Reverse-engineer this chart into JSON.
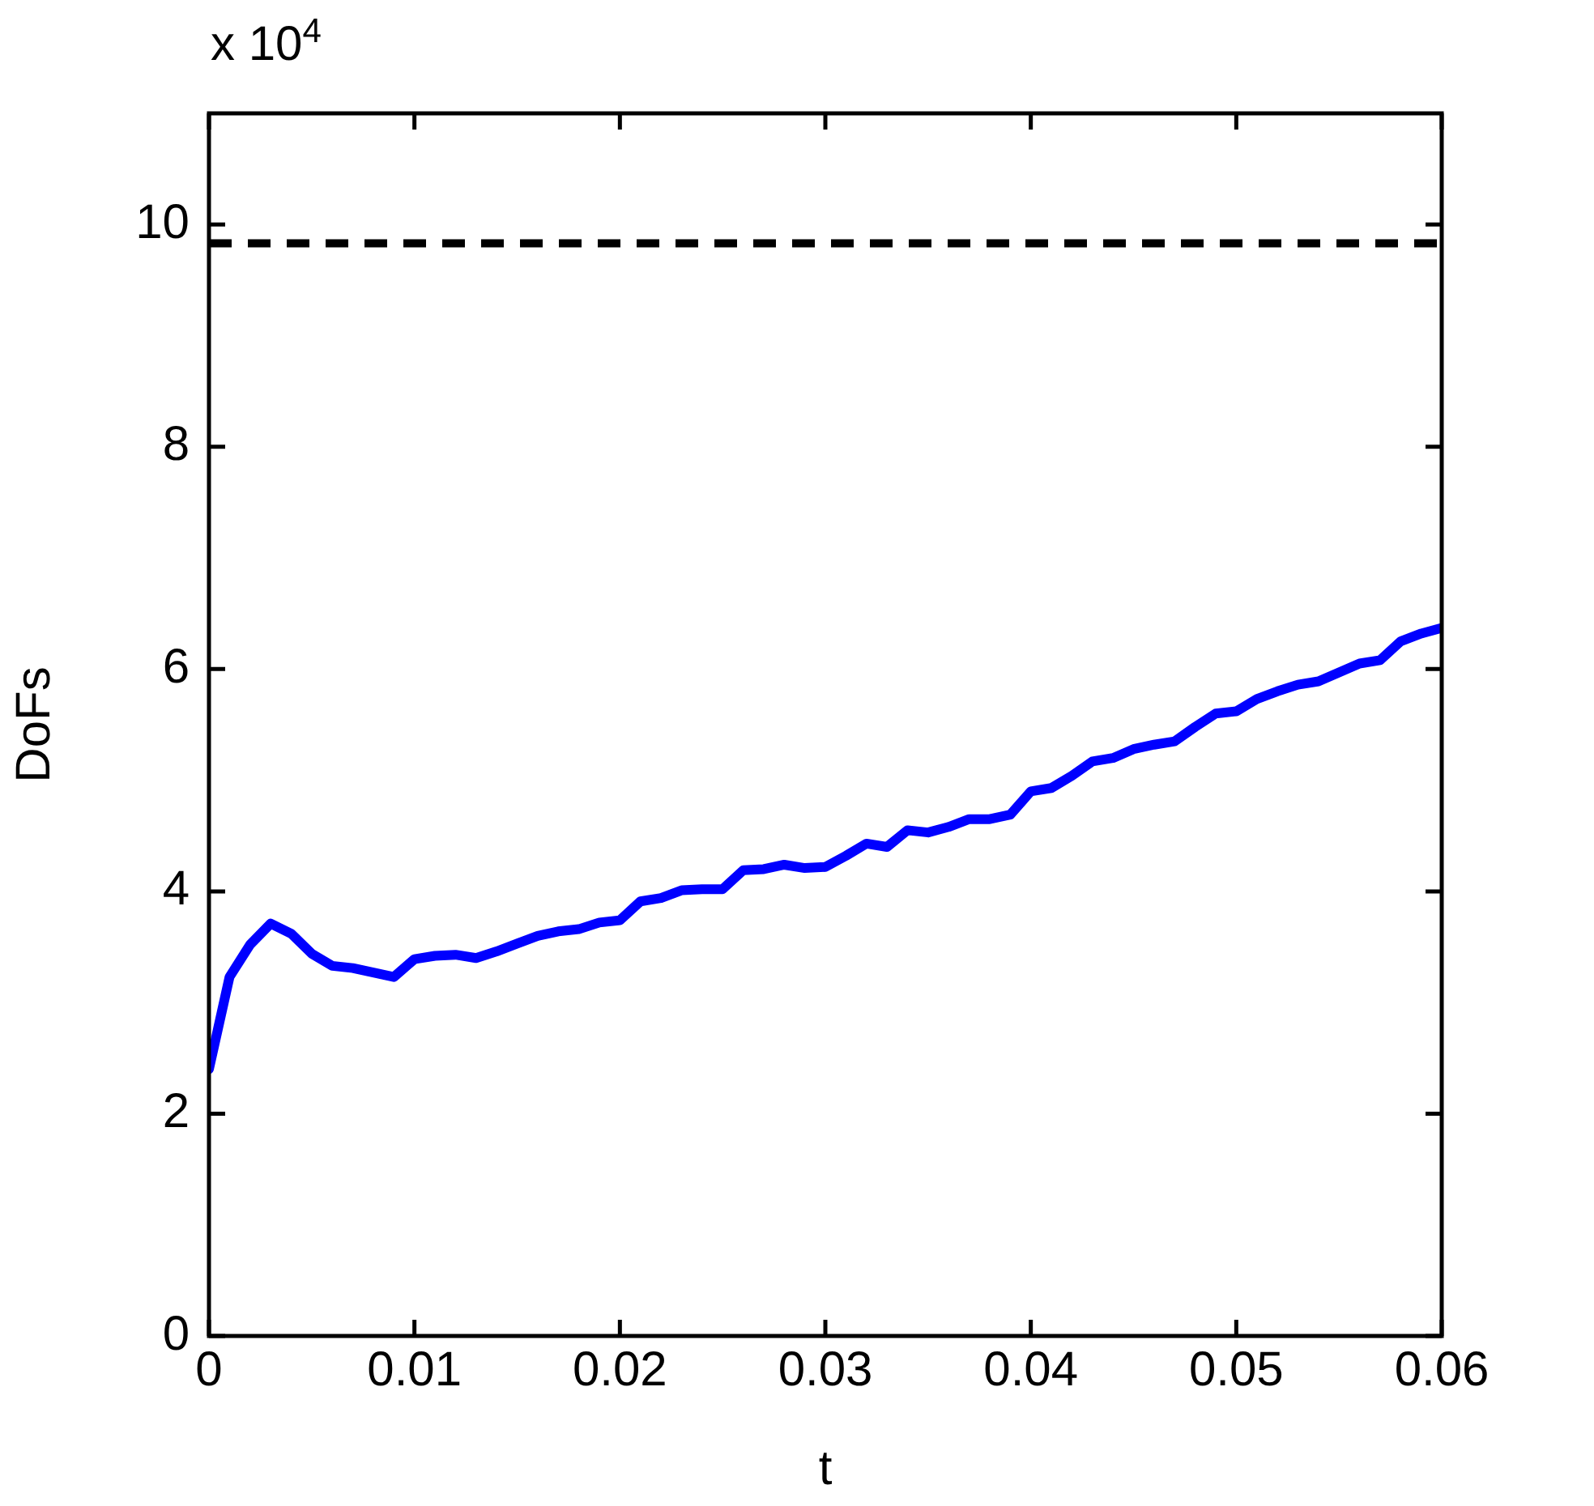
{
  "chart_data": {
    "type": "line",
    "xlabel": "t",
    "ylabel": "DoFs",
    "annotations": [
      "x 10$^{4}$"
    ],
    "x": [
      0,
      0.001,
      0.002,
      0.003,
      0.004,
      0.005,
      0.006,
      0.007,
      0.008,
      0.009,
      0.01,
      0.011,
      0.012,
      0.013,
      0.014,
      0.015,
      0.016,
      0.017,
      0.018,
      0.019,
      0.02,
      0.021,
      0.022,
      0.023,
      0.024,
      0.025,
      0.026,
      0.027,
      0.028,
      0.029,
      0.03,
      0.031,
      0.032,
      0.033,
      0.034,
      0.035,
      0.036,
      0.037,
      0.038,
      0.039,
      0.04,
      0.041,
      0.042,
      0.043,
      0.044,
      0.045,
      0.046,
      0.047,
      0.048,
      0.049,
      0.05,
      0.051,
      0.052,
      0.053,
      0.054,
      0.055,
      0.056,
      0.057,
      0.058,
      0.059,
      0.06
    ],
    "series": [
      {
        "color": "#0000ff",
        "values": [
          2.4,
          3.23,
          3.52,
          3.71,
          3.62,
          3.44,
          3.33,
          3.31,
          3.27,
          3.23,
          3.39,
          3.42,
          3.43,
          3.4,
          3.46,
          3.53,
          3.6,
          3.64,
          3.66,
          3.72,
          3.74,
          3.91,
          3.94,
          4.01,
          4.02,
          4.02,
          4.19,
          4.2,
          4.24,
          4.21,
          4.22,
          4.32,
          4.43,
          4.4,
          4.55,
          4.53,
          4.58,
          4.65,
          4.65,
          4.69,
          4.9,
          4.93,
          5.04,
          5.17,
          5.2,
          5.28,
          5.32,
          5.35,
          5.48,
          5.6,
          5.62,
          5.73,
          5.8,
          5.86,
          5.89,
          5.97,
          6.05,
          6.08,
          6.25,
          6.32,
          6.37
        ]
      }
    ],
    "ref_lines": [
      {
        "axis": "y",
        "value": 9.83,
        "color": "#000000",
        "line_style": "dashed"
      }
    ],
    "xlim": [
      0,
      0.06
    ],
    "xticks": [
      0,
      0.01,
      0.02,
      0.03,
      0.04,
      0.05,
      0.06
    ],
    "ylim": [
      0,
      11
    ],
    "yticks": [
      0,
      2,
      4,
      6,
      8,
      10
    ],
    "grid": false,
    "legend": false,
    "marker": "none",
    "line_style": "solid"
  }
}
